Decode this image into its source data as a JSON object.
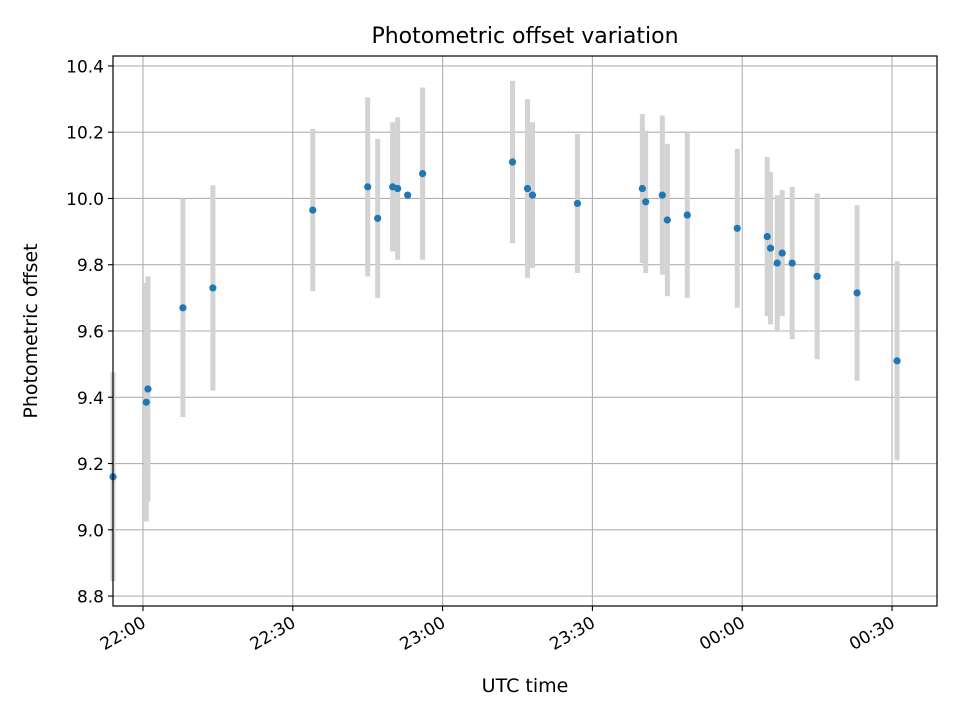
{
  "chart_data": {
    "type": "scatter",
    "title": "Photometric offset variation",
    "xlabel": "UTC time",
    "ylabel": "Photometric offset",
    "x_unit": "UTC time (day 1 = times after midnight)",
    "xlim": [
      "21:54",
      "00:39 +1d"
    ],
    "ylim": [
      8.77,
      10.43
    ],
    "x_ticks": [
      {
        "time": "22:00",
        "label": "22:00"
      },
      {
        "time": "22:30",
        "label": "22:30"
      },
      {
        "time": "23:00",
        "label": "23:00"
      },
      {
        "time": "23:30",
        "label": "23:30"
      },
      {
        "time": "00:00 +1d",
        "label": "00:00"
      },
      {
        "time": "00:30 +1d",
        "label": "00:30"
      }
    ],
    "y_ticks": [
      8.8,
      9.0,
      9.2,
      9.4,
      9.6,
      9.8,
      10.0,
      10.2,
      10.4
    ],
    "y_tick_labels": [
      "8.8",
      "9.0",
      "9.2",
      "9.4",
      "9.6",
      "9.8",
      "10.0",
      "10.2",
      "10.4"
    ],
    "grid": true,
    "series": [
      {
        "marker_color": "#1f77b4",
        "errorbar_color": "#d3d3d3",
        "points": [
          {
            "time": "21:54",
            "y": 9.16,
            "err": 0.315
          },
          {
            "time": "22:00:40",
            "y": 9.385,
            "err": 0.36
          },
          {
            "time": "22:01",
            "y": 9.425,
            "err": 0.34
          },
          {
            "time": "22:08",
            "y": 9.67,
            "err": 0.33
          },
          {
            "time": "22:14",
            "y": 9.73,
            "err": 0.31
          },
          {
            "time": "22:34",
            "y": 9.965,
            "err": 0.245
          },
          {
            "time": "22:45",
            "y": 10.035,
            "err": 0.27
          },
          {
            "time": "22:47",
            "y": 9.94,
            "err": 0.24
          },
          {
            "time": "22:50",
            "y": 10.035,
            "err": 0.195
          },
          {
            "time": "22:51",
            "y": 10.03,
            "err": 0.215
          },
          {
            "time": "22:53",
            "y": 10.01,
            "err": 0.0
          },
          {
            "time": "22:56",
            "y": 10.075,
            "err": 0.26
          },
          {
            "time": "23:14",
            "y": 10.11,
            "err": 0.245
          },
          {
            "time": "23:17",
            "y": 10.03,
            "err": 0.27
          },
          {
            "time": "23:18",
            "y": 10.01,
            "err": 0.22
          },
          {
            "time": "23:27",
            "y": 9.985,
            "err": 0.21
          },
          {
            "time": "23:40",
            "y": 10.03,
            "err": 0.225
          },
          {
            "time": "23:40:40",
            "y": 9.99,
            "err": 0.215
          },
          {
            "time": "23:44",
            "y": 10.01,
            "err": 0.24
          },
          {
            "time": "23:45",
            "y": 9.935,
            "err": 0.23
          },
          {
            "time": "23:49",
            "y": 9.95,
            "err": 0.25
          },
          {
            "time": "23:59",
            "y": 9.91,
            "err": 0.24
          },
          {
            "time": "00:05 +1d",
            "y": 9.885,
            "err": 0.24
          },
          {
            "time": "00:05:40 +1d",
            "y": 9.85,
            "err": 0.23
          },
          {
            "time": "00:07 +1d",
            "y": 9.805,
            "err": 0.205
          },
          {
            "time": "00:08 +1d",
            "y": 9.835,
            "err": 0.19
          },
          {
            "time": "00:10 +1d",
            "y": 9.805,
            "err": 0.23
          },
          {
            "time": "00:15 +1d",
            "y": 9.765,
            "err": 0.25
          },
          {
            "time": "00:23 +1d",
            "y": 9.715,
            "err": 0.265
          },
          {
            "time": "00:31 +1d",
            "y": 9.51,
            "err": 0.3
          }
        ]
      }
    ]
  }
}
